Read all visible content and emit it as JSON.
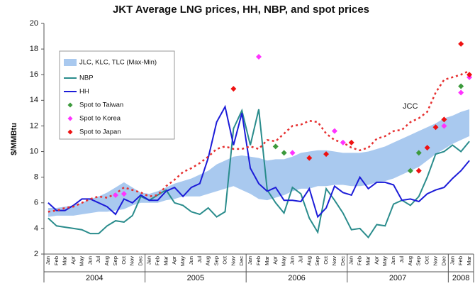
{
  "chart_data": {
    "type": "line",
    "title": "JKT Average LNG prices, HH, NBP, and spot prices",
    "y_label": "$/MMBtu",
    "annotation": "JCC",
    "categories": [
      "Jan",
      "Feb",
      "Mar",
      "Apr",
      "May",
      "Jun",
      "Jul",
      "Aug",
      "Sep",
      "Oct",
      "Nov",
      "Dec",
      "Jan",
      "Feb",
      "Mar",
      "Apr",
      "May",
      "Jun",
      "Jul",
      "Aug",
      "Sep",
      "Oct",
      "Nov",
      "Dec",
      "Jan",
      "Feb",
      "Mar",
      "Apr",
      "May",
      "Jun",
      "Jul",
      "Aug",
      "Sep",
      "Oct",
      "Nov",
      "Dec",
      "Jan",
      "Feb",
      "Mar",
      "Apr",
      "May",
      "Jun",
      "Jul",
      "Aug",
      "Sep",
      "Oct",
      "Nov",
      "Dec",
      "Jan",
      "Feb",
      "Mar"
    ],
    "x_groups": [
      {
        "label": "2004",
        "count": 12
      },
      {
        "label": "2005",
        "count": 12
      },
      {
        "label": "2006",
        "count": 12
      },
      {
        "label": "2007",
        "count": 12
      },
      {
        "label": "2008",
        "count": 3
      }
    ],
    "ylim": [
      2,
      20
    ],
    "yticks": [
      2,
      4,
      6,
      8,
      10,
      12,
      14,
      16,
      18,
      20
    ],
    "band": {
      "name": "JLC, KLC, TLC (Max-Min)",
      "color": "#a9c9ef",
      "low": [
        4.9,
        5.0,
        5.0,
        5.0,
        5.1,
        5.2,
        5.3,
        5.3,
        5.4,
        5.5,
        5.8,
        6.0,
        6.0,
        6.0,
        6.2,
        6.3,
        6.5,
        6.5,
        6.5,
        6.7,
        6.9,
        7.1,
        7.3,
        7.0,
        6.7,
        6.3,
        6.2,
        6.4,
        6.6,
        6.9,
        7.1,
        7.1,
        7.3,
        7.3,
        7.4,
        7.4,
        7.3,
        7.3,
        7.4,
        7.6,
        7.7,
        7.9,
        8.2,
        8.5,
        8.8,
        9.3,
        9.8,
        10.2,
        10.6,
        10.9,
        11.2
      ],
      "high": [
        5.6,
        5.6,
        5.7,
        5.8,
        6.0,
        6.3,
        6.5,
        6.8,
        7.2,
        7.6,
        7.2,
        6.8,
        6.7,
        6.9,
        7.2,
        7.5,
        7.7,
        7.9,
        8.2,
        8.5,
        9.0,
        9.3,
        9.6,
        9.7,
        9.6,
        9.5,
        9.3,
        9.4,
        9.4,
        9.6,
        9.9,
        10.0,
        10.1,
        10.1,
        10.0,
        9.9,
        9.9,
        9.9,
        10.0,
        10.2,
        10.4,
        10.7,
        11.0,
        11.3,
        11.6,
        11.9,
        12.2,
        12.6,
        12.8,
        13.1,
        13.3
      ]
    },
    "series": [
      {
        "name": "NBP",
        "color": "#2a8c8c",
        "style": "solid",
        "values": [
          4.8,
          4.2,
          4.1,
          4.0,
          3.9,
          3.6,
          3.6,
          4.2,
          4.6,
          4.5,
          5.0,
          6.5,
          6.2,
          6.6,
          7.0,
          6.0,
          5.8,
          5.3,
          5.1,
          5.6,
          4.9,
          5.3,
          11.8,
          13.2,
          10.5,
          13.3,
          7.0,
          6.0,
          5.2,
          7.2,
          6.7,
          4.8,
          3.7,
          7.1,
          6.2,
          5.2,
          3.9,
          4.0,
          3.3,
          4.3,
          4.2,
          5.9,
          6.2,
          5.8,
          6.5,
          8.0,
          9.8,
          10.0,
          10.5,
          10.0,
          10.8
        ]
      },
      {
        "name": "HH",
        "color": "#1c1cd8",
        "style": "solid",
        "values": [
          6.0,
          5.4,
          5.4,
          5.8,
          6.3,
          6.3,
          6.0,
          5.7,
          5.1,
          6.3,
          6.0,
          6.6,
          6.2,
          6.2,
          6.9,
          7.2,
          6.5,
          7.2,
          7.5,
          9.5,
          12.3,
          13.5,
          10.5,
          13.0,
          8.7,
          7.5,
          6.9,
          7.2,
          6.2,
          6.2,
          6.1,
          7.1,
          4.9,
          5.6,
          7.3,
          6.8,
          6.6,
          8.0,
          7.1,
          7.6,
          7.6,
          7.4,
          6.2,
          6.3,
          6.1,
          6.7,
          7.0,
          7.2,
          7.9,
          8.5,
          9.3
        ]
      },
      {
        "name": "JCC",
        "color": "#e63030",
        "style": "dotted",
        "legend": false,
        "values": [
          5.3,
          5.4,
          5.6,
          5.7,
          6.0,
          6.3,
          6.5,
          6.4,
          6.7,
          7.2,
          7.0,
          6.8,
          6.5,
          6.6,
          7.3,
          7.8,
          8.4,
          8.7,
          9.1,
          9.6,
          10.2,
          10.4,
          10.2,
          10.2,
          10.4,
          10.2,
          10.9,
          10.8,
          11.4,
          12.0,
          12.1,
          12.4,
          12.3,
          11.4,
          10.9,
          10.7,
          10.3,
          10.1,
          10.3,
          11.0,
          11.2,
          11.6,
          11.7,
          12.3,
          12.6,
          13.1,
          14.6,
          15.6,
          15.8,
          16.0,
          16.3
        ]
      },
      {
        "name": "Spot to Taiwan",
        "color": "#3c9a3c",
        "style": "marker",
        "values": [
          null,
          null,
          null,
          null,
          null,
          null,
          null,
          null,
          null,
          null,
          null,
          null,
          null,
          null,
          null,
          null,
          null,
          null,
          null,
          null,
          null,
          null,
          null,
          null,
          null,
          null,
          null,
          10.4,
          9.9,
          null,
          null,
          null,
          null,
          null,
          null,
          null,
          null,
          null,
          null,
          null,
          null,
          null,
          null,
          8.5,
          9.9,
          null,
          null,
          null,
          null,
          15.1,
          null
        ]
      },
      {
        "name": "Spot to Korea",
        "color": "#ff33ff",
        "style": "marker",
        "values": [
          null,
          null,
          null,
          null,
          null,
          null,
          null,
          null,
          6.6,
          6.7,
          null,
          null,
          null,
          null,
          null,
          null,
          null,
          null,
          null,
          null,
          null,
          null,
          null,
          null,
          null,
          17.4,
          null,
          null,
          null,
          9.9,
          null,
          null,
          null,
          null,
          11.6,
          10.7,
          null,
          null,
          null,
          null,
          null,
          null,
          null,
          null,
          null,
          null,
          null,
          12.0,
          null,
          14.6,
          15.8
        ]
      },
      {
        "name": "Spot to Japan",
        "color": "#ee1111",
        "style": "marker",
        "values": [
          null,
          null,
          null,
          null,
          null,
          null,
          null,
          null,
          null,
          null,
          null,
          null,
          null,
          null,
          null,
          null,
          null,
          null,
          null,
          null,
          null,
          null,
          14.9,
          null,
          null,
          null,
          null,
          null,
          null,
          null,
          null,
          9.5,
          null,
          9.8,
          null,
          null,
          10.7,
          null,
          null,
          null,
          null,
          null,
          null,
          null,
          8.5,
          10.3,
          11.9,
          12.5,
          null,
          18.4,
          16.0
        ]
      }
    ]
  }
}
